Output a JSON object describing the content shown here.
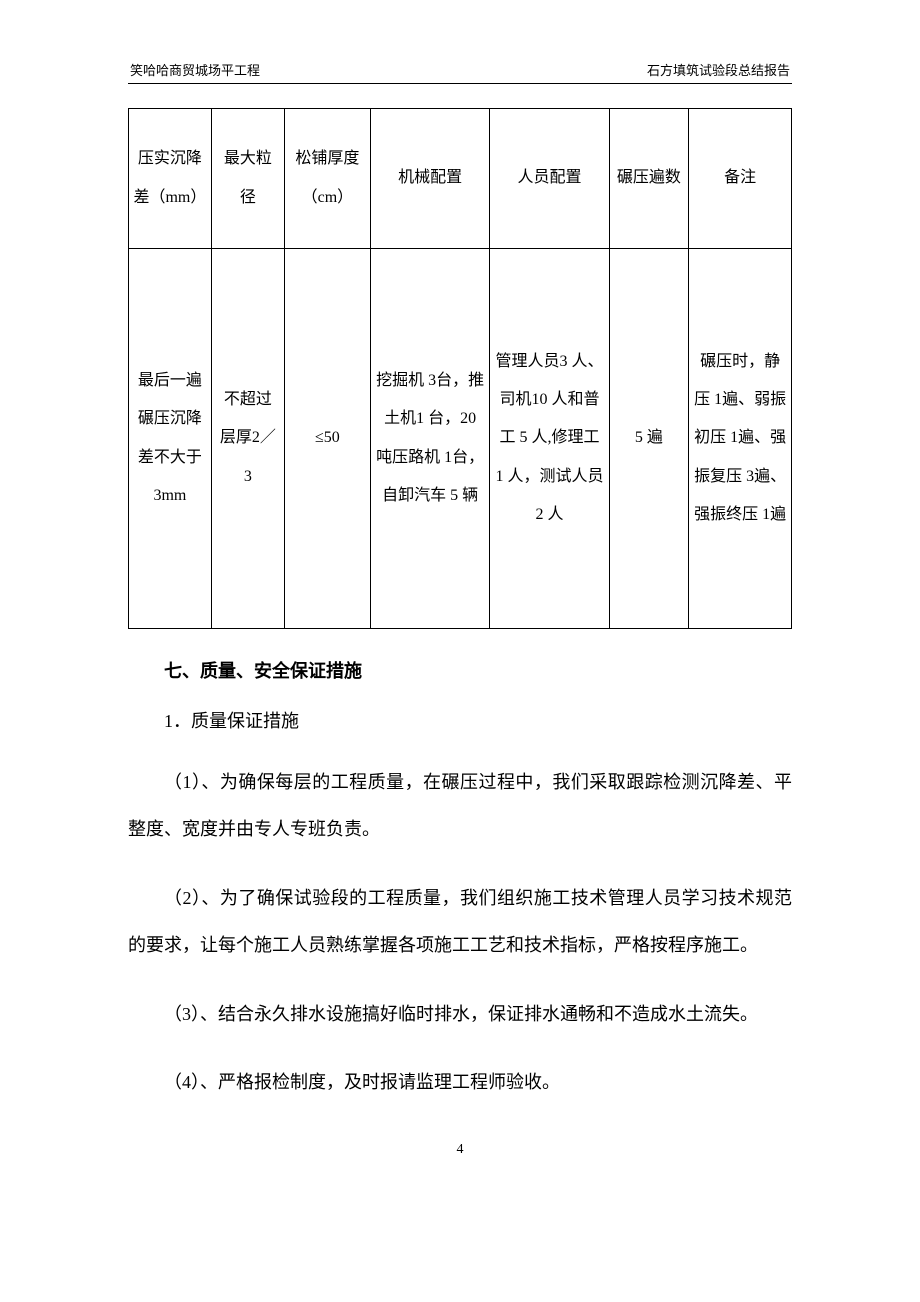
{
  "header": {
    "left": "笑哈哈商贸城场平工程",
    "right": "石方填筑试验段总结报告"
  },
  "table": {
    "columns": [
      "压实沉降差（mm）",
      "最大粒径",
      "松铺厚度（cm）",
      "机械配置",
      "人员配置",
      "碾压遍数",
      "备注"
    ],
    "rows": [
      [
        "最后一遍碾压沉降差不大于3mm",
        "不超过层厚2／3",
        "≤50",
        "挖掘机 3台，推土机1 台，20 吨压路机 1台，自卸汽车 5 辆",
        "管理人员3 人、司机10 人和普工 5 人,修理工 1 人，测试人员2 人",
        "5 遍",
        "碾压时，静压 1遍、弱振初压 1遍、强振复压 3遍、强振终压 1遍"
      ]
    ]
  },
  "section": {
    "title": "七、质量、安全保证措施",
    "subtitle": "1．质量保证措施",
    "paragraphs": [
      "（1）、为确保每层的工程质量，在碾压过程中，我们采取跟踪检测沉降差、平整度、宽度并由专人专班负责。",
      "（2）、为了确保试验段的工程质量，我们组织施工技术管理人员学习技术规范的要求，让每个施工人员熟练掌握各项施工工艺和技术指标，严格按程序施工。",
      "（3）、结合永久排水设施搞好临时排水，保证排水通畅和不造成水土流失。",
      "（4）、严格报检制度，及时报请监理工程师验收。"
    ]
  },
  "pageNumber": "4",
  "styling": {
    "background_color": "#ffffff",
    "text_color": "#000000",
    "border_color": "#000000",
    "body_font_size": 18,
    "header_font_size": 13,
    "table_font_size": 16,
    "page_number_font_size": 14,
    "line_height": 2.6
  }
}
